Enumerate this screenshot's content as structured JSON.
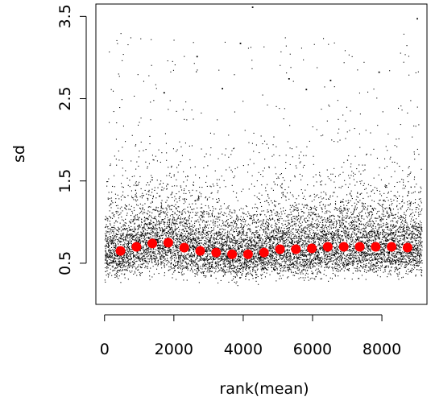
{
  "chart_data": {
    "type": "scatter",
    "title": "",
    "xlabel": "rank(mean)",
    "ylabel": "sd",
    "xlim": [
      -250,
      9300
    ],
    "ylim": [
      0.0,
      3.65
    ],
    "x_ticks": [
      0,
      2000,
      4000,
      6000,
      8000
    ],
    "x_tick_labels": [
      "0",
      "2000",
      "4000",
      "6000",
      "8000"
    ],
    "y_ticks": [
      0.5,
      1.5,
      2.5,
      3.5
    ],
    "y_tick_labels": [
      "0.5",
      "1.5",
      "2.5",
      "3.5"
    ],
    "grid": false,
    "legend": "none",
    "points_color": "#000000",
    "summary_color": "#ff0000",
    "n_points_approx": 9200,
    "summary_points": {
      "x": [
        460,
        920,
        1380,
        1840,
        2300,
        2760,
        3220,
        3680,
        4140,
        4600,
        5060,
        5520,
        5980,
        6440,
        6900,
        7360,
        7820,
        8280,
        8740
      ],
      "y": [
        0.65,
        0.7,
        0.74,
        0.75,
        0.69,
        0.65,
        0.63,
        0.61,
        0.61,
        0.63,
        0.67,
        0.67,
        0.68,
        0.7,
        0.7,
        0.7,
        0.7,
        0.7,
        0.69
      ]
    },
    "outliers": {
      "x": [
        3900,
        4250,
        2650,
        3380,
        5300,
        6500,
        7900,
        9000,
        1700,
        5800
      ],
      "y": [
        3.18,
        3.62,
        3.02,
        2.63,
        2.75,
        2.73,
        2.83,
        3.48,
        2.58,
        2.62
      ]
    }
  }
}
